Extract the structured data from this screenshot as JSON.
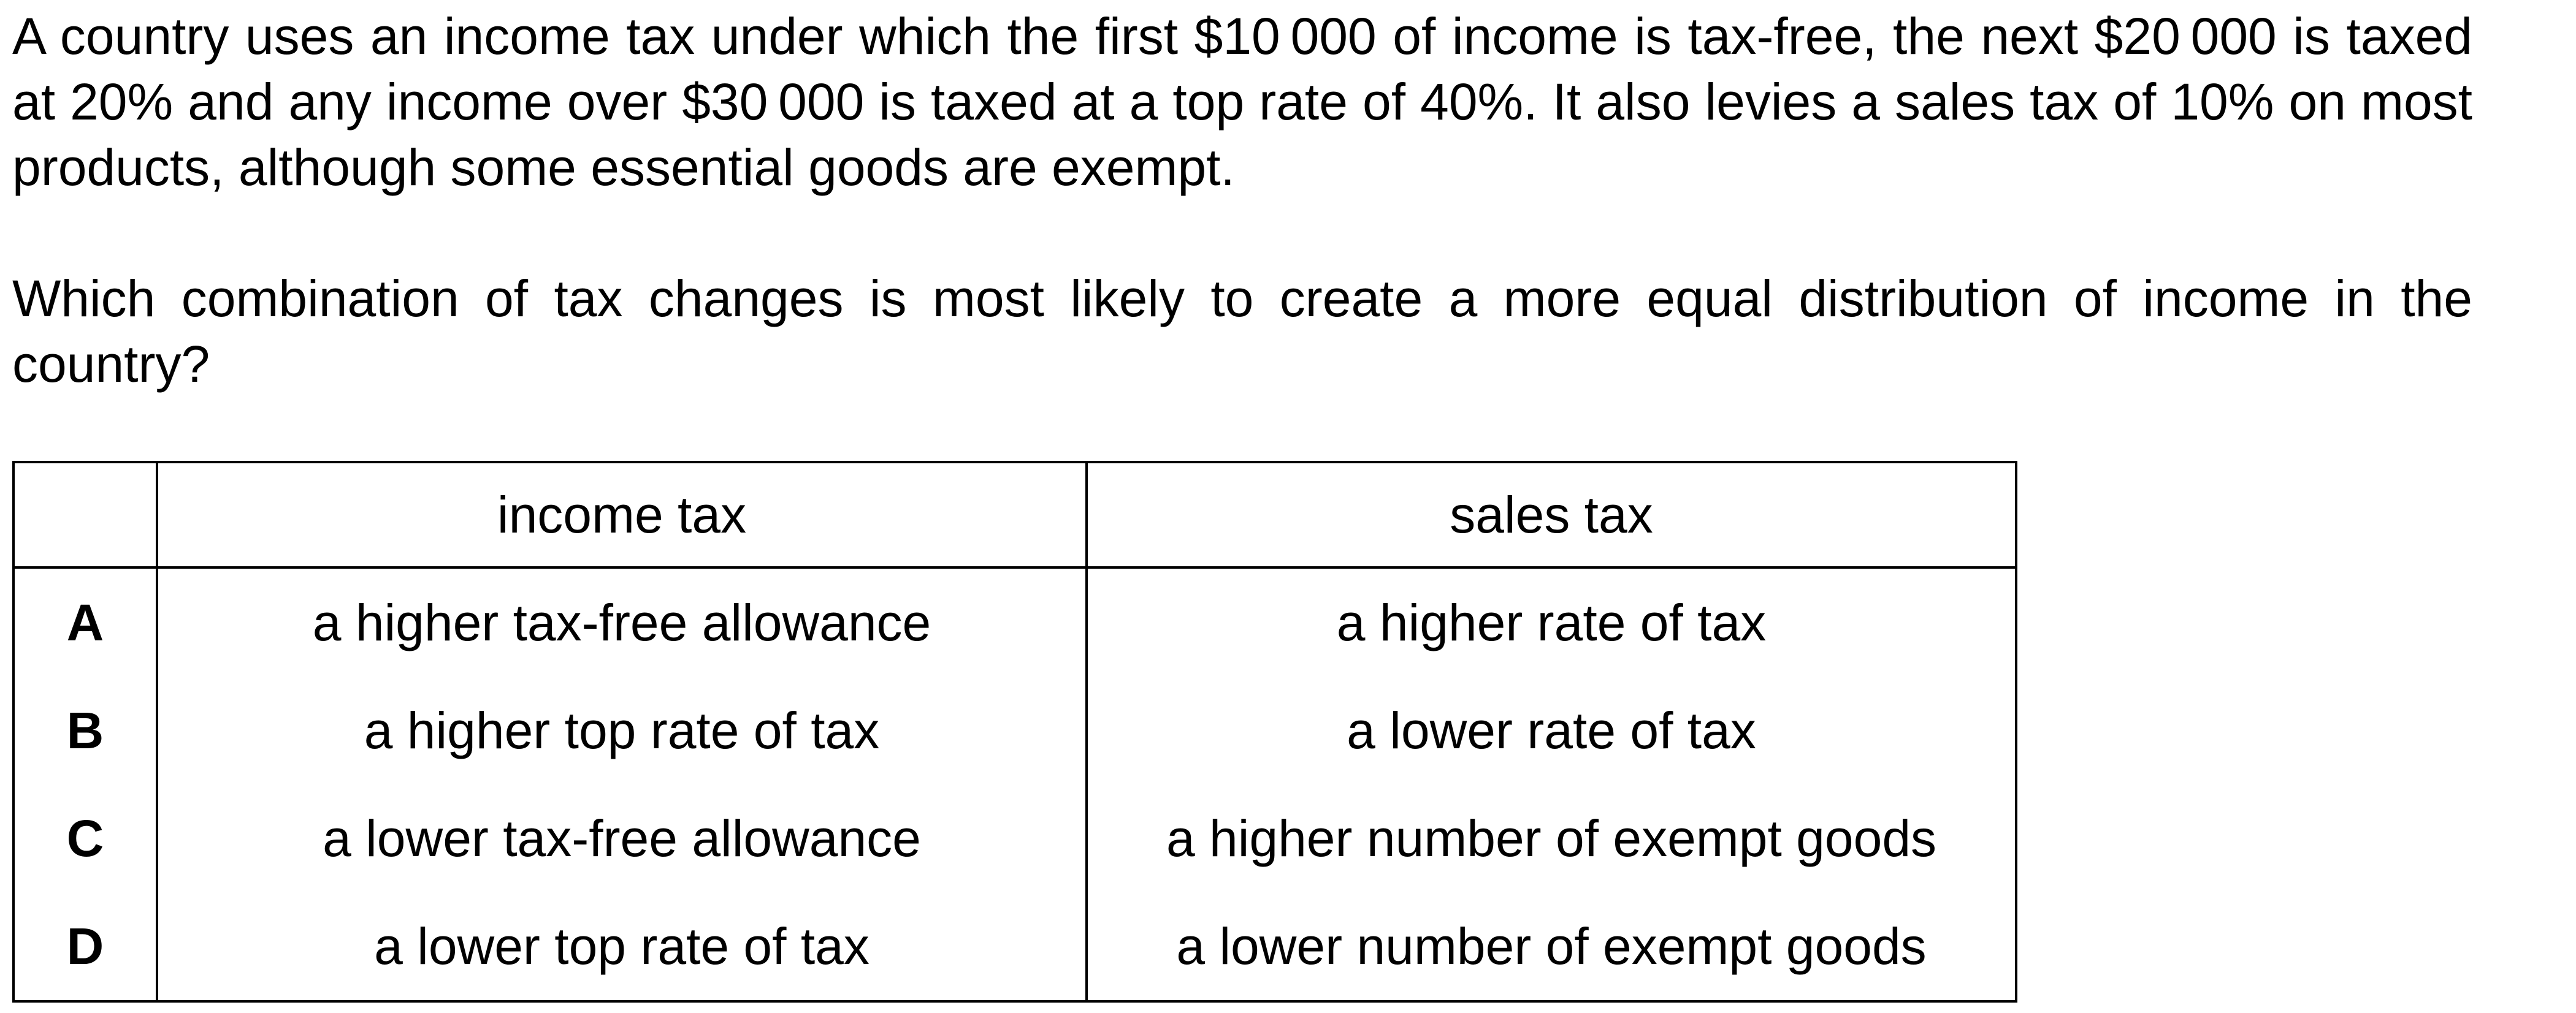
{
  "stem": "A country uses an income tax under which the first $10 000 of income is tax-free, the next $20 000 is taxed at 20% and any income over $30 000 is taxed at a top rate of 40%. It also levies a sales tax of 10% on most products, although some essential goods are exempt.",
  "question": "Which combination of tax changes is most likely to create a more equal distribution of income in the country?",
  "table": {
    "headers": [
      "",
      "income tax",
      "sales tax"
    ],
    "rows": [
      {
        "letter": "A",
        "income_tax": "a higher tax-free allowance",
        "sales_tax": "a higher rate of tax"
      },
      {
        "letter": "B",
        "income_tax": "a higher top rate of tax",
        "sales_tax": "a lower rate of tax"
      },
      {
        "letter": "C",
        "income_tax": "a lower tax-free allowance",
        "sales_tax": "a higher number of exempt goods"
      },
      {
        "letter": "D",
        "income_tax": "a lower top rate of tax",
        "sales_tax": "a lower number of exempt goods"
      }
    ]
  }
}
